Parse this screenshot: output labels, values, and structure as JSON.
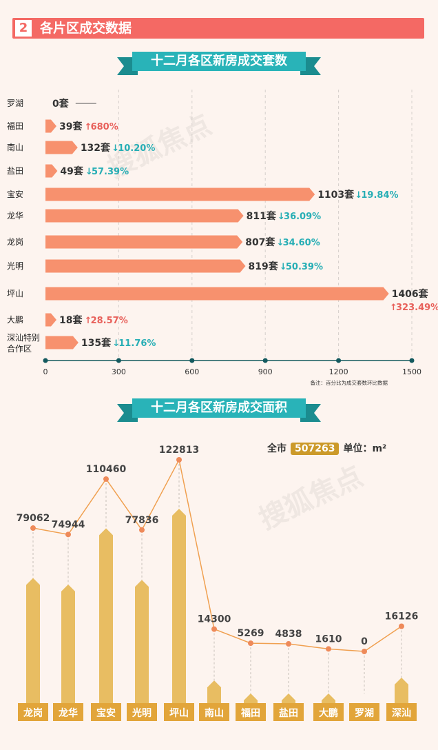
{
  "section": {
    "number": "2",
    "title": "各片区成交数据"
  },
  "chart_data": [
    {
      "type": "bar",
      "title": "十二月各区新房成交套数",
      "orientation": "horizontal",
      "categories": [
        "罗湖",
        "福田",
        "南山",
        "盐田",
        "宝安",
        "龙华",
        "龙岗",
        "光明",
        "坪山",
        "大鹏",
        "深汕特别合作区"
      ],
      "values": [
        0,
        39,
        132,
        49,
        1103,
        811,
        807,
        819,
        1406,
        18,
        135
      ],
      "value_labels": [
        "0套",
        "39套",
        "132套",
        "49套",
        "1103套",
        "811套",
        "807套",
        "819套",
        "1406套",
        "18套",
        "135套"
      ],
      "changes": [
        "——",
        "680%",
        "10.20%",
        "57.39%",
        "19.84%",
        "36.09%",
        "34.60%",
        "50.39%",
        "323.49%",
        "28.57%",
        "11.76%"
      ],
      "change_dir": [
        "none",
        "up",
        "down",
        "down",
        "down",
        "down",
        "down",
        "down",
        "up",
        "up",
        "down"
      ],
      "xticks": [
        0,
        300,
        600,
        900,
        1200,
        1500
      ],
      "xlim": [
        0,
        1500
      ],
      "note": "备注：百分比为成交套数环比数据",
      "colors": {
        "bar": "#f7916e",
        "up": "#e8605a",
        "down": "#27aeb5",
        "axis": "#13595e"
      }
    },
    {
      "type": "bar",
      "title": "十二月各区新房成交面积",
      "categories": [
        "龙岗",
        "龙华",
        "宝安",
        "光明",
        "坪山",
        "南山",
        "福田",
        "盐田",
        "大鹏",
        "罗湖",
        "深汕"
      ],
      "values": [
        79062,
        74944,
        110460,
        77836,
        122813,
        14300,
        5269,
        4838,
        1610,
        0,
        16126
      ],
      "city_total_label": "全市",
      "city_total": "507263",
      "unit": "单位：m²",
      "colors": {
        "bar": "#e8bd62",
        "label_bg": "#e2a53a",
        "line": "#f0a050",
        "dot": "#ee8a5a"
      }
    }
  ],
  "watermark": "搜狐焦点"
}
